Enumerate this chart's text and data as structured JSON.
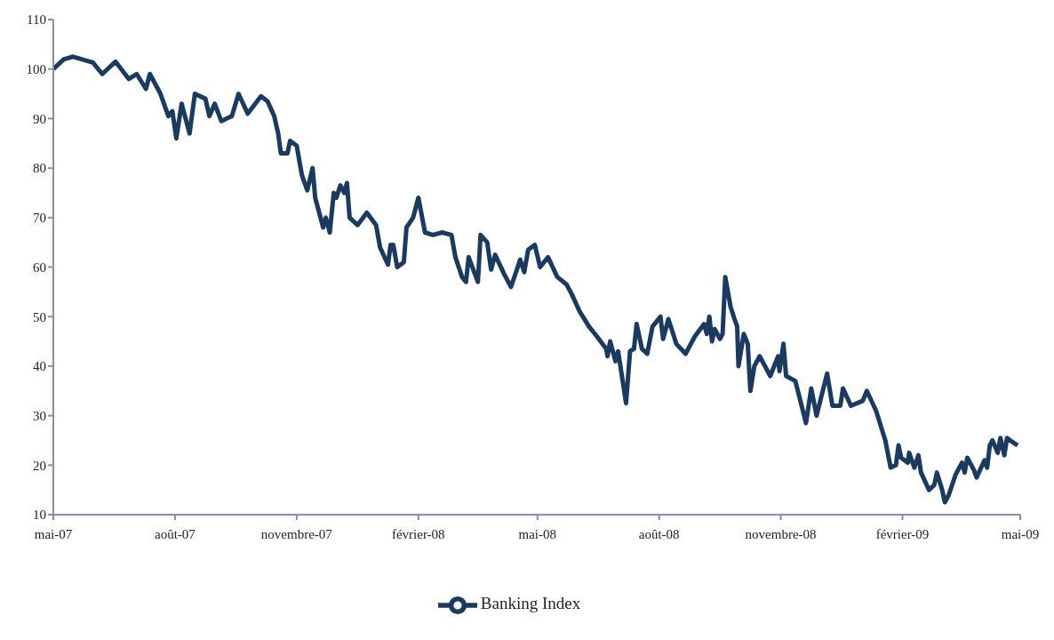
{
  "chart_data": {
    "type": "line",
    "legend": "bottom",
    "grid": false,
    "xlim": [
      "2007-05-01",
      "2009-05-01"
    ],
    "xticks": [
      {
        "value": "2007-05-01",
        "label": "mai-07"
      },
      {
        "value": "2007-08-01",
        "label": "août-07"
      },
      {
        "value": "2007-11-01",
        "label": "novembre-07"
      },
      {
        "value": "2008-02-01",
        "label": "février-08"
      },
      {
        "value": "2008-05-01",
        "label": "mai-08"
      },
      {
        "value": "2008-08-01",
        "label": "août-08"
      },
      {
        "value": "2008-11-01",
        "label": "novembre-08"
      },
      {
        "value": "2009-02-01",
        "label": "février-09"
      },
      {
        "value": "2009-05-01",
        "label": "mai-09"
      }
    ],
    "ylim": [
      10,
      110
    ],
    "yticks": [
      10,
      20,
      30,
      40,
      50,
      60,
      70,
      80,
      90,
      100,
      110
    ],
    "x": [
      "2007-05-01",
      "2007-05-09",
      "2007-05-16",
      "2007-05-31",
      "2007-06-07",
      "2007-06-17",
      "2007-06-27",
      "2007-07-03",
      "2007-07-10",
      "2007-07-13",
      "2007-07-21",
      "2007-07-27",
      "2007-07-30",
      "2007-08-02",
      "2007-08-06",
      "2007-08-12",
      "2007-08-16",
      "2007-08-24",
      "2007-08-27",
      "2007-08-31",
      "2007-09-05",
      "2007-09-13",
      "2007-09-18",
      "2007-09-25",
      "2007-10-05",
      "2007-10-10",
      "2007-10-15",
      "2007-10-18",
      "2007-10-20",
      "2007-10-25",
      "2007-10-27",
      "2007-11-01",
      "2007-11-05",
      "2007-11-09",
      "2007-11-13",
      "2007-11-15",
      "2007-11-21",
      "2007-11-23",
      "2007-11-26",
      "2007-11-29",
      "2007-12-01",
      "2007-12-04",
      "2007-12-07",
      "2007-12-09",
      "2007-12-11",
      "2007-12-17",
      "2007-12-24",
      "2007-12-31",
      "2008-01-03",
      "2008-01-09",
      "2008-01-11",
      "2008-01-13",
      "2008-01-16",
      "2008-01-21",
      "2008-01-23",
      "2008-01-28",
      "2008-02-01",
      "2008-02-06",
      "2008-02-12",
      "2008-02-19",
      "2008-02-26",
      "2008-02-29",
      "2008-03-05",
      "2008-03-08",
      "2008-03-10",
      "2008-03-17",
      "2008-03-19",
      "2008-03-24",
      "2008-03-27",
      "2008-03-30",
      "2008-04-06",
      "2008-04-11",
      "2008-04-18",
      "2008-04-21",
      "2008-04-24",
      "2008-04-29",
      "2008-05-03",
      "2008-05-09",
      "2008-05-16",
      "2008-05-23",
      "2008-05-27",
      "2008-06-02",
      "2008-06-09",
      "2008-06-15",
      "2008-06-22",
      "2008-06-23",
      "2008-06-25",
      "2008-06-29",
      "2008-07-01",
      "2008-07-07",
      "2008-07-10",
      "2008-07-13",
      "2008-07-15",
      "2008-07-19",
      "2008-07-23",
      "2008-07-27",
      "2008-08-02",
      "2008-08-04",
      "2008-08-08",
      "2008-08-14",
      "2008-08-21",
      "2008-08-28",
      "2008-09-04",
      "2008-09-06",
      "2008-09-08",
      "2008-09-10",
      "2008-09-12",
      "2008-09-16",
      "2008-09-18",
      "2008-09-20",
      "2008-09-24",
      "2008-09-27",
      "2008-09-29",
      "2008-09-30",
      "2008-10-04",
      "2008-10-07",
      "2008-10-09",
      "2008-10-12",
      "2008-10-16",
      "2008-10-24",
      "2008-10-30",
      "2008-10-31",
      "2008-11-03",
      "2008-11-05",
      "2008-11-12",
      "2008-11-20",
      "2008-11-24",
      "2008-11-28",
      "2008-12-06",
      "2008-12-10",
      "2008-12-16",
      "2008-12-18",
      "2008-12-24",
      "2009-01-02",
      "2009-01-05",
      "2009-01-12",
      "2009-01-19",
      "2009-01-23",
      "2009-01-27",
      "2009-01-29",
      "2009-01-31",
      "2009-02-05",
      "2009-02-06",
      "2009-02-10",
      "2009-02-13",
      "2009-02-15",
      "2009-02-21",
      "2009-02-25",
      "2009-02-27",
      "2009-03-03",
      "2009-03-05",
      "2009-03-08",
      "2009-03-13",
      "2009-03-18",
      "2009-03-20",
      "2009-03-22",
      "2009-03-27",
      "2009-03-29",
      "2009-04-04",
      "2009-04-06",
      "2009-04-08",
      "2009-04-10",
      "2009-04-14",
      "2009-04-16",
      "2009-04-19",
      "2009-04-21",
      "2009-04-26",
      "2009-04-29"
    ],
    "series": [
      {
        "name": "Banking Index",
        "color": "#1b3a60",
        "line_style": "solid",
        "values": [
          100,
          102,
          102.5,
          101.3,
          99,
          101.5,
          98,
          99,
          96,
          99,
          95,
          90.5,
          91.5,
          86,
          93,
          87,
          95,
          94,
          90.5,
          93,
          89.5,
          90.5,
          95,
          91,
          94.5,
          93.5,
          90.5,
          87,
          83,
          83,
          85.5,
          84.5,
          78.5,
          75.5,
          80,
          74,
          68,
          70,
          67,
          75,
          74,
          76.5,
          75,
          77,
          70,
          68.5,
          71,
          68.5,
          64,
          60.5,
          64.5,
          64.5,
          60,
          61,
          68,
          70,
          74,
          67,
          66.5,
          67,
          66.5,
          62,
          58,
          57,
          62,
          57,
          66.5,
          65,
          59.5,
          62.5,
          58.5,
          56,
          61.5,
          59,
          63.5,
          64.5,
          60,
          62,
          58,
          56.5,
          54.5,
          51,
          48,
          46,
          43.5,
          42,
          45,
          41,
          43,
          32.5,
          43,
          43.5,
          48.5,
          43.5,
          42.5,
          48,
          50,
          45.5,
          49.5,
          44.5,
          42.5,
          46,
          48.5,
          46.5,
          50,
          45,
          47.5,
          45.5,
          46.5,
          58,
          52,
          49.5,
          48,
          40,
          46.5,
          44.5,
          35,
          40,
          42,
          38,
          42,
          39,
          44.5,
          38,
          37,
          28.5,
          35.5,
          30,
          38.5,
          32,
          32,
          35.5,
          32,
          33,
          35,
          31,
          25,
          19.5,
          20,
          24,
          21.5,
          20.5,
          22.5,
          19.5,
          22,
          18.5,
          15,
          16,
          18.5,
          15,
          12.5,
          14,
          18,
          20.5,
          18.5,
          21.5,
          19,
          17.5,
          21,
          19.5,
          24,
          25,
          22.5,
          25.5,
          22,
          25.5,
          24.5,
          24
        ]
      }
    ]
  }
}
